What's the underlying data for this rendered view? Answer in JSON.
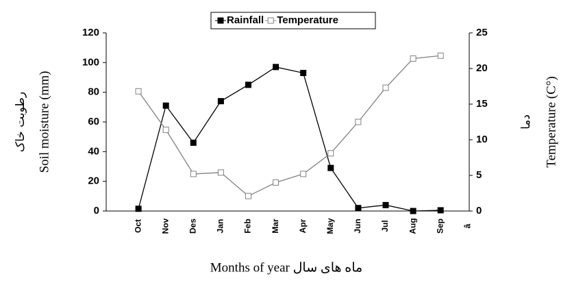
{
  "chart_data": {
    "type": "line",
    "categories": [
      null,
      "Oct",
      "Nov",
      "Des",
      "Jan",
      "Feb",
      "Mar",
      "Apr",
      "May",
      "Jun",
      "Jul",
      "Aug",
      "Sep",
      "â"
    ],
    "series": [
      {
        "name": "Rainfall",
        "color": "#000000",
        "marker": "filled-square",
        "values": [
          null,
          1.5,
          71,
          46,
          74,
          85,
          97,
          93,
          29,
          2,
          4,
          0,
          0.5,
          null
        ]
      },
      {
        "name": "Temperature",
        "color": "#808080",
        "marker": "open-square",
        "axis": "y2",
        "values": [
          null,
          16.8,
          11.4,
          5.2,
          5.4,
          2.1,
          4,
          5.2,
          8.1,
          12.5,
          17.3,
          21.4,
          21.8,
          null
        ]
      }
    ],
    "ylim": [
      0,
      120
    ],
    "yticks": [
      0,
      20,
      40,
      60,
      80,
      100,
      120
    ],
    "y2lim": [
      0,
      25
    ],
    "y2ticks": [
      0,
      5,
      10,
      15,
      20,
      25
    ],
    "y_label": "Soil moisture (mm)",
    "y_label_fa": "رطوبت خاک",
    "y2_label": "Temperature (C°)",
    "y2_label_fa": "دما",
    "x_label": "Months of year ماه های سال",
    "grid": false,
    "legend": "top"
  }
}
